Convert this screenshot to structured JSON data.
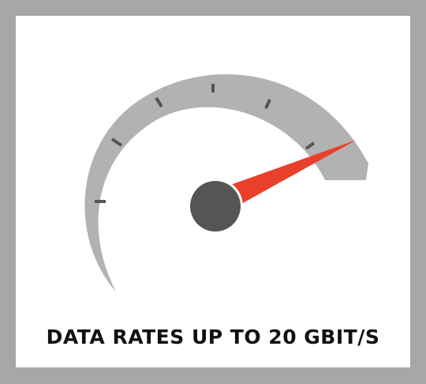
{
  "caption": "DATA RATES UP TO 20 GBIT/S",
  "gauge": {
    "needle_level": 0.88
  },
  "colors": {
    "frame": "#a7a7a7",
    "panel": "#ffffff",
    "arc": "#b3b2b3",
    "ticks": "#555555",
    "needle": "#e8402b",
    "hub": "#555555",
    "caption": "#111111"
  }
}
